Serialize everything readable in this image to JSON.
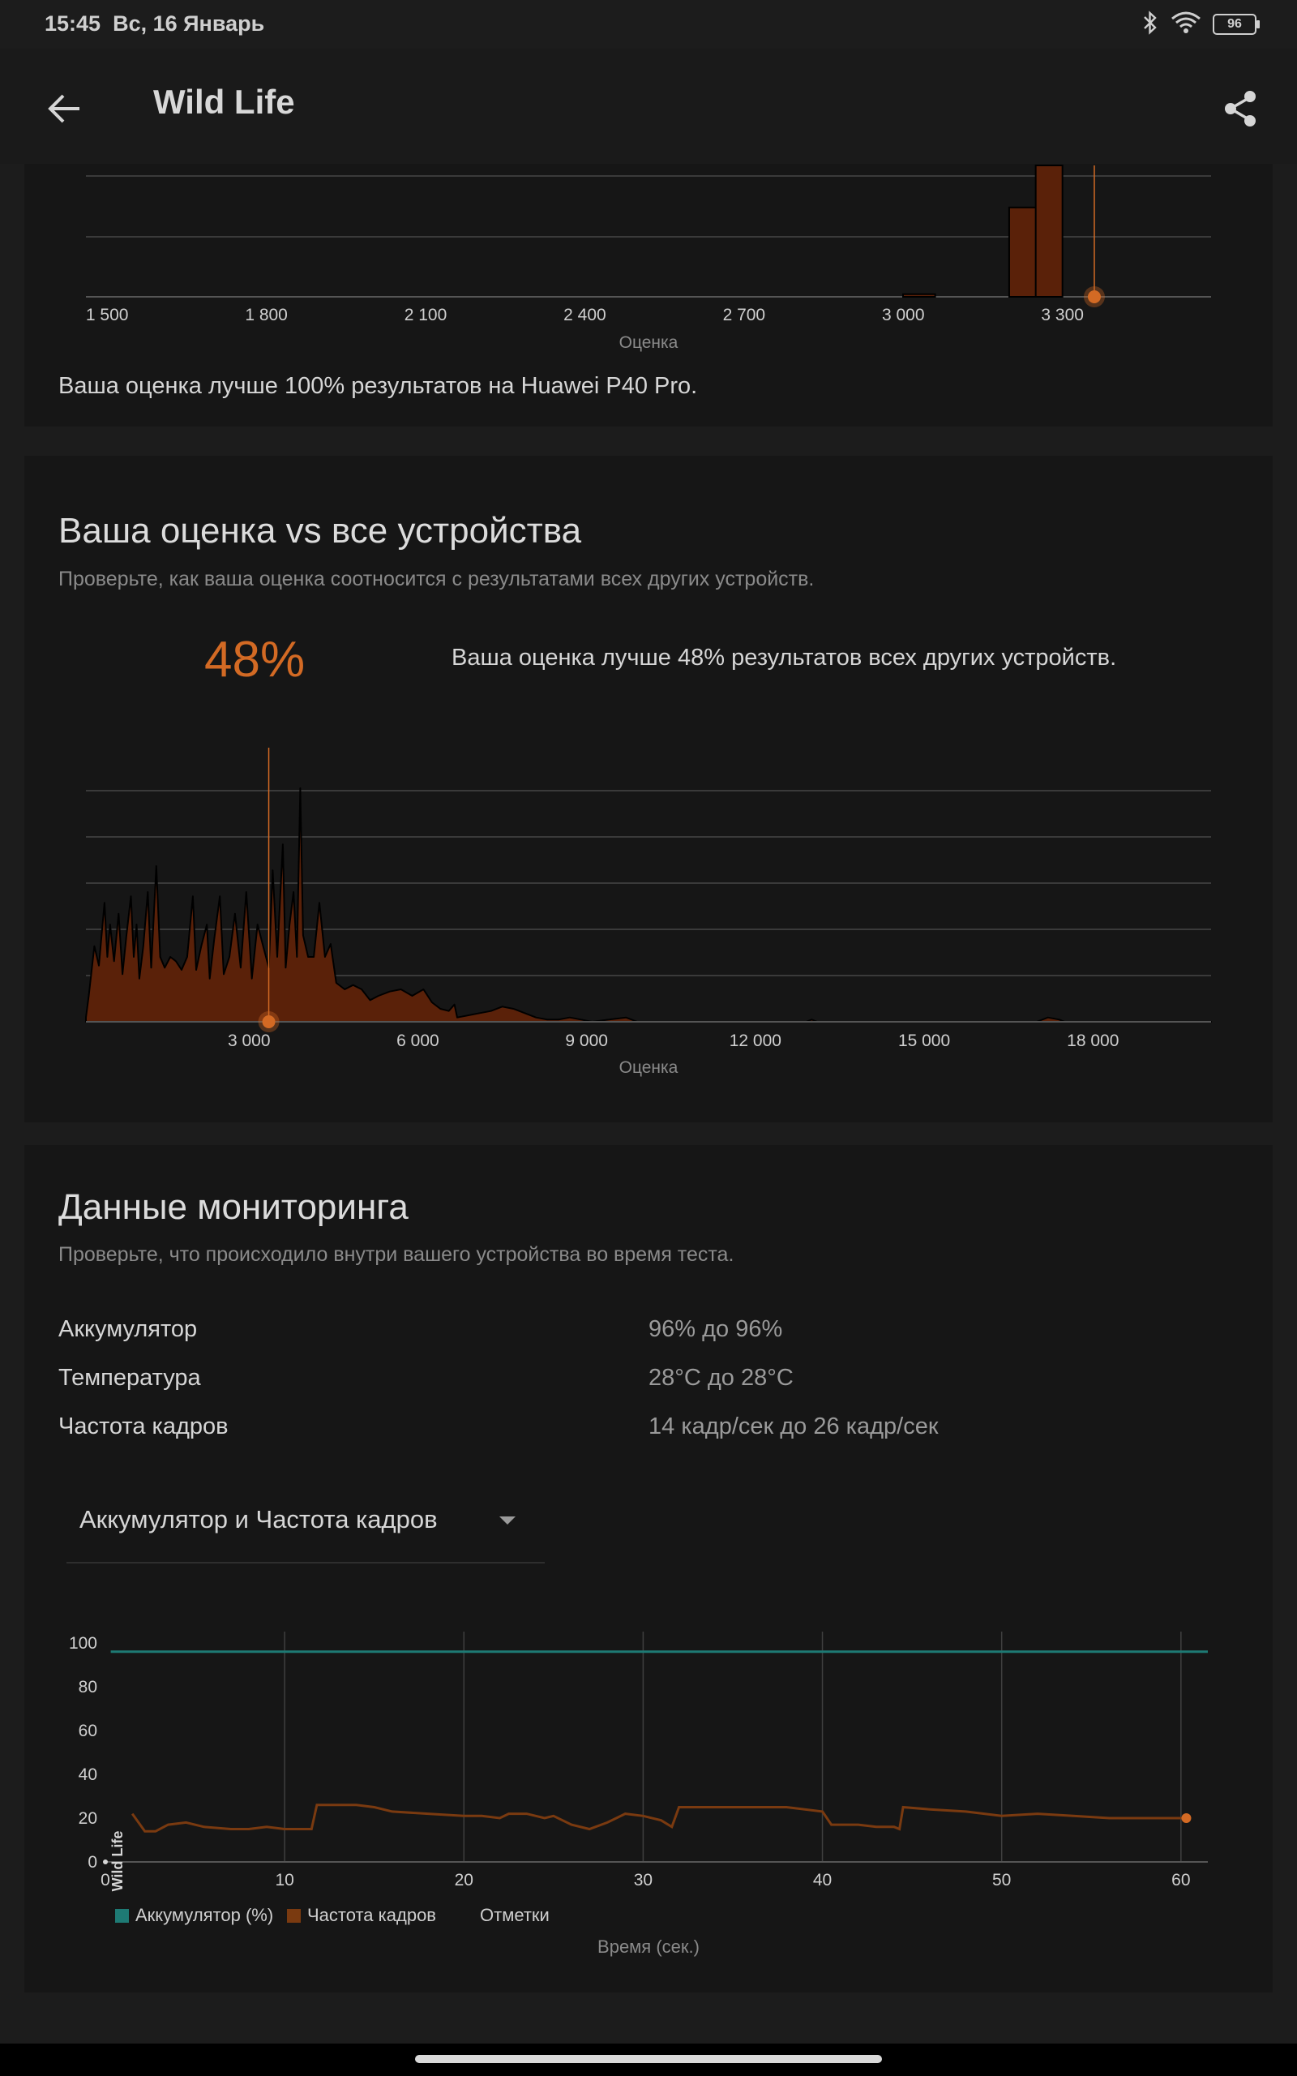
{
  "status": {
    "time": "15:45",
    "date": "Вс, 16 Январь",
    "battery": "96",
    "icons": [
      "bluetooth-icon",
      "wifi-icon",
      "battery-icon"
    ]
  },
  "appbar": {
    "title": "Wild Life",
    "back_icon": "arrow-left-icon",
    "share_icon": "share-icon"
  },
  "colors": {
    "accent": "#d36a24",
    "bar_fill": "#5a2109",
    "battery_line": "#1e7a74",
    "fps_line": "#7a3a10",
    "background": "#1c1c1c",
    "card": "#161616"
  },
  "device_histogram": {
    "sentence": "Ваша оценка лучше 100% результатов на Huawei P40 Pro."
  },
  "all_devices": {
    "title": "Ваша оценка vs все устройства",
    "subtitle": "Проверьте, как ваша оценка соотносится с результатами всех других устройств.",
    "percent": "48%",
    "description": "Ваша оценка лучше 48% результатов всех других устройств."
  },
  "monitoring": {
    "title": "Данные мониторинга",
    "subtitle": "Проверьте, что происходило внутри вашего устройства во время теста.",
    "rows": [
      {
        "label": "Аккумулятор",
        "value": "96% до 96%"
      },
      {
        "label": "Температура",
        "value": "28°C до 28°C"
      },
      {
        "label": "Частота кадров",
        "value": "14 кадр/сек до 26 кадр/сек"
      }
    ],
    "dropdown": {
      "selected": "Аккумулятор и Частота кадров"
    },
    "legend": [
      {
        "label": "Аккумулятор (%)",
        "color": "#1e7a74"
      },
      {
        "label": "Частота кадров",
        "color": "#7a3a10"
      },
      {
        "label": "Отметки",
        "color": "#161616"
      }
    ]
  },
  "chart_data": [
    {
      "type": "bar",
      "xlabel": "Оценка",
      "x_ticks": [
        "1 500",
        "1 800",
        "2 100",
        "2 400",
        "2 700",
        "3 000",
        "3 300"
      ],
      "xlim": [
        1460,
        3580
      ],
      "bins": [
        {
          "x": 3050,
          "value": 0.02
        },
        {
          "x": 3250,
          "value": 0.68
        },
        {
          "x": 3300,
          "value": 1.0
        }
      ],
      "marker": {
        "x": 3360,
        "color": "#d36a24"
      },
      "grid": true
    },
    {
      "type": "area",
      "xlabel": "Оценка",
      "x_ticks": [
        "3 000",
        "6 000",
        "9 000",
        "12 000",
        "15 000",
        "18 000"
      ],
      "x_tick_values": [
        3000,
        6000,
        9000,
        12000,
        15000,
        18000
      ],
      "xlim": [
        100,
        20100
      ],
      "ylim": [
        0,
        1.2
      ],
      "points": [
        [
          100,
          0.02
        ],
        [
          150,
          0.12
        ],
        [
          250,
          0.35
        ],
        [
          330,
          0.26
        ],
        [
          430,
          0.55
        ],
        [
          480,
          0.3
        ],
        [
          530,
          0.45
        ],
        [
          600,
          0.28
        ],
        [
          680,
          0.5
        ],
        [
          750,
          0.22
        ],
        [
          820,
          0.4
        ],
        [
          900,
          0.58
        ],
        [
          950,
          0.3
        ],
        [
          1000,
          0.45
        ],
        [
          1050,
          0.2
        ],
        [
          1120,
          0.35
        ],
        [
          1200,
          0.6
        ],
        [
          1260,
          0.25
        ],
        [
          1350,
          0.72
        ],
        [
          1420,
          0.3
        ],
        [
          1500,
          0.25
        ],
        [
          1600,
          0.3
        ],
        [
          1700,
          0.28
        ],
        [
          1800,
          0.24
        ],
        [
          1900,
          0.3
        ],
        [
          2000,
          0.58
        ],
        [
          2060,
          0.24
        ],
        [
          2150,
          0.35
        ],
        [
          2250,
          0.45
        ],
        [
          2300,
          0.2
        ],
        [
          2380,
          0.38
        ],
        [
          2480,
          0.58
        ],
        [
          2550,
          0.22
        ],
        [
          2650,
          0.3
        ],
        [
          2750,
          0.5
        ],
        [
          2850,
          0.25
        ],
        [
          2950,
          0.6
        ],
        [
          3050,
          0.2
        ],
        [
          3150,
          0.45
        ],
        [
          3250,
          0.35
        ],
        [
          3350,
          0.25
        ],
        [
          3420,
          0.7
        ],
        [
          3500,
          0.3
        ],
        [
          3600,
          0.82
        ],
        [
          3650,
          0.25
        ],
        [
          3720,
          0.45
        ],
        [
          3790,
          0.6
        ],
        [
          3850,
          0.3
        ],
        [
          3910,
          1.08
        ],
        [
          3960,
          0.4
        ],
        [
          4050,
          0.3
        ],
        [
          4150,
          0.3
        ],
        [
          4250,
          0.55
        ],
        [
          4350,
          0.3
        ],
        [
          4450,
          0.36
        ],
        [
          4550,
          0.18
        ],
        [
          4700,
          0.15
        ],
        [
          4850,
          0.17
        ],
        [
          5000,
          0.15
        ],
        [
          5150,
          0.1
        ],
        [
          5300,
          0.12
        ],
        [
          5500,
          0.14
        ],
        [
          5700,
          0.15
        ],
        [
          5900,
          0.12
        ],
        [
          6100,
          0.15
        ],
        [
          6250,
          0.09
        ],
        [
          6400,
          0.06
        ],
        [
          6550,
          0.05
        ],
        [
          6650,
          0.08
        ],
        [
          6700,
          0.02
        ],
        [
          6900,
          0.03
        ],
        [
          7100,
          0.04
        ],
        [
          7300,
          0.05
        ],
        [
          7500,
          0.07
        ],
        [
          7700,
          0.06
        ],
        [
          7900,
          0.04
        ],
        [
          8100,
          0.02
        ],
        [
          8300,
          0.01
        ],
        [
          8500,
          0.01
        ],
        [
          8700,
          0.02
        ],
        [
          8900,
          0.01
        ],
        [
          9100,
          0.0
        ],
        [
          9400,
          0.01
        ],
        [
          9700,
          0.02
        ],
        [
          9900,
          0.0
        ],
        [
          10100,
          0.0
        ],
        [
          12900,
          0.0
        ],
        [
          13000,
          0.01
        ],
        [
          13100,
          0.0
        ],
        [
          17000,
          0.0
        ],
        [
          17200,
          0.02
        ],
        [
          17400,
          0.01
        ],
        [
          17500,
          0.0
        ],
        [
          20100,
          0.0
        ]
      ],
      "marker": {
        "x": 3350,
        "color": "#d36a24"
      },
      "grid": true
    },
    {
      "type": "line",
      "xlabel": "Время (сек.)",
      "x_ticks": [
        "0",
        "10",
        "20",
        "30",
        "40",
        "50",
        "60"
      ],
      "x_tick_values": [
        0,
        10,
        20,
        30,
        40,
        50,
        60
      ],
      "y_ticks": [
        "0",
        "20",
        "40",
        "60",
        "80",
        "100"
      ],
      "y_tick_values": [
        0,
        20,
        40,
        60,
        80,
        100
      ],
      "xlim": [
        0,
        61.5
      ],
      "ylim": [
        0,
        100
      ],
      "annotation": "Wild Life",
      "series": [
        {
          "name": "Аккумулятор (%)",
          "color": "#1e7a74",
          "points": [
            [
              0.3,
              96
            ],
            [
              61.5,
              96
            ]
          ]
        },
        {
          "name": "Частота кадров",
          "color": "#7a3a10",
          "points": [
            [
              1.5,
              22
            ],
            [
              2.2,
              14
            ],
            [
              2.8,
              14
            ],
            [
              3.5,
              17
            ],
            [
              4.5,
              18
            ],
            [
              5.5,
              16
            ],
            [
              7,
              15
            ],
            [
              8,
              15
            ],
            [
              9,
              16
            ],
            [
              10,
              15
            ],
            [
              11,
              15
            ],
            [
              11.5,
              15
            ],
            [
              11.8,
              26
            ],
            [
              13,
              26
            ],
            [
              14,
              26
            ],
            [
              15,
              25
            ],
            [
              16,
              23
            ],
            [
              18,
              22
            ],
            [
              20,
              21
            ],
            [
              21,
              21
            ],
            [
              22,
              20
            ],
            [
              22.5,
              22
            ],
            [
              23.5,
              22
            ],
            [
              24.5,
              20
            ],
            [
              25,
              21
            ],
            [
              26,
              17
            ],
            [
              27,
              15
            ],
            [
              28,
              18
            ],
            [
              29,
              22
            ],
            [
              30,
              21
            ],
            [
              31,
              19
            ],
            [
              31.6,
              16
            ],
            [
              32,
              25
            ],
            [
              34,
              25
            ],
            [
              36,
              25
            ],
            [
              38,
              25
            ],
            [
              40,
              23
            ],
            [
              40.5,
              17
            ],
            [
              42,
              17
            ],
            [
              43,
              16
            ],
            [
              44,
              16
            ],
            [
              44.3,
              15
            ],
            [
              44.5,
              25
            ],
            [
              46,
              24
            ],
            [
              48,
              23
            ],
            [
              50,
              21
            ],
            [
              52,
              22
            ],
            [
              54,
              21
            ],
            [
              56,
              20
            ],
            [
              58,
              20
            ],
            [
              60,
              20
            ],
            [
              60.3,
              20
            ]
          ]
        }
      ],
      "marker": {
        "x": 60.3,
        "y": 20,
        "color": "#d36a24"
      },
      "grid": true
    }
  ]
}
